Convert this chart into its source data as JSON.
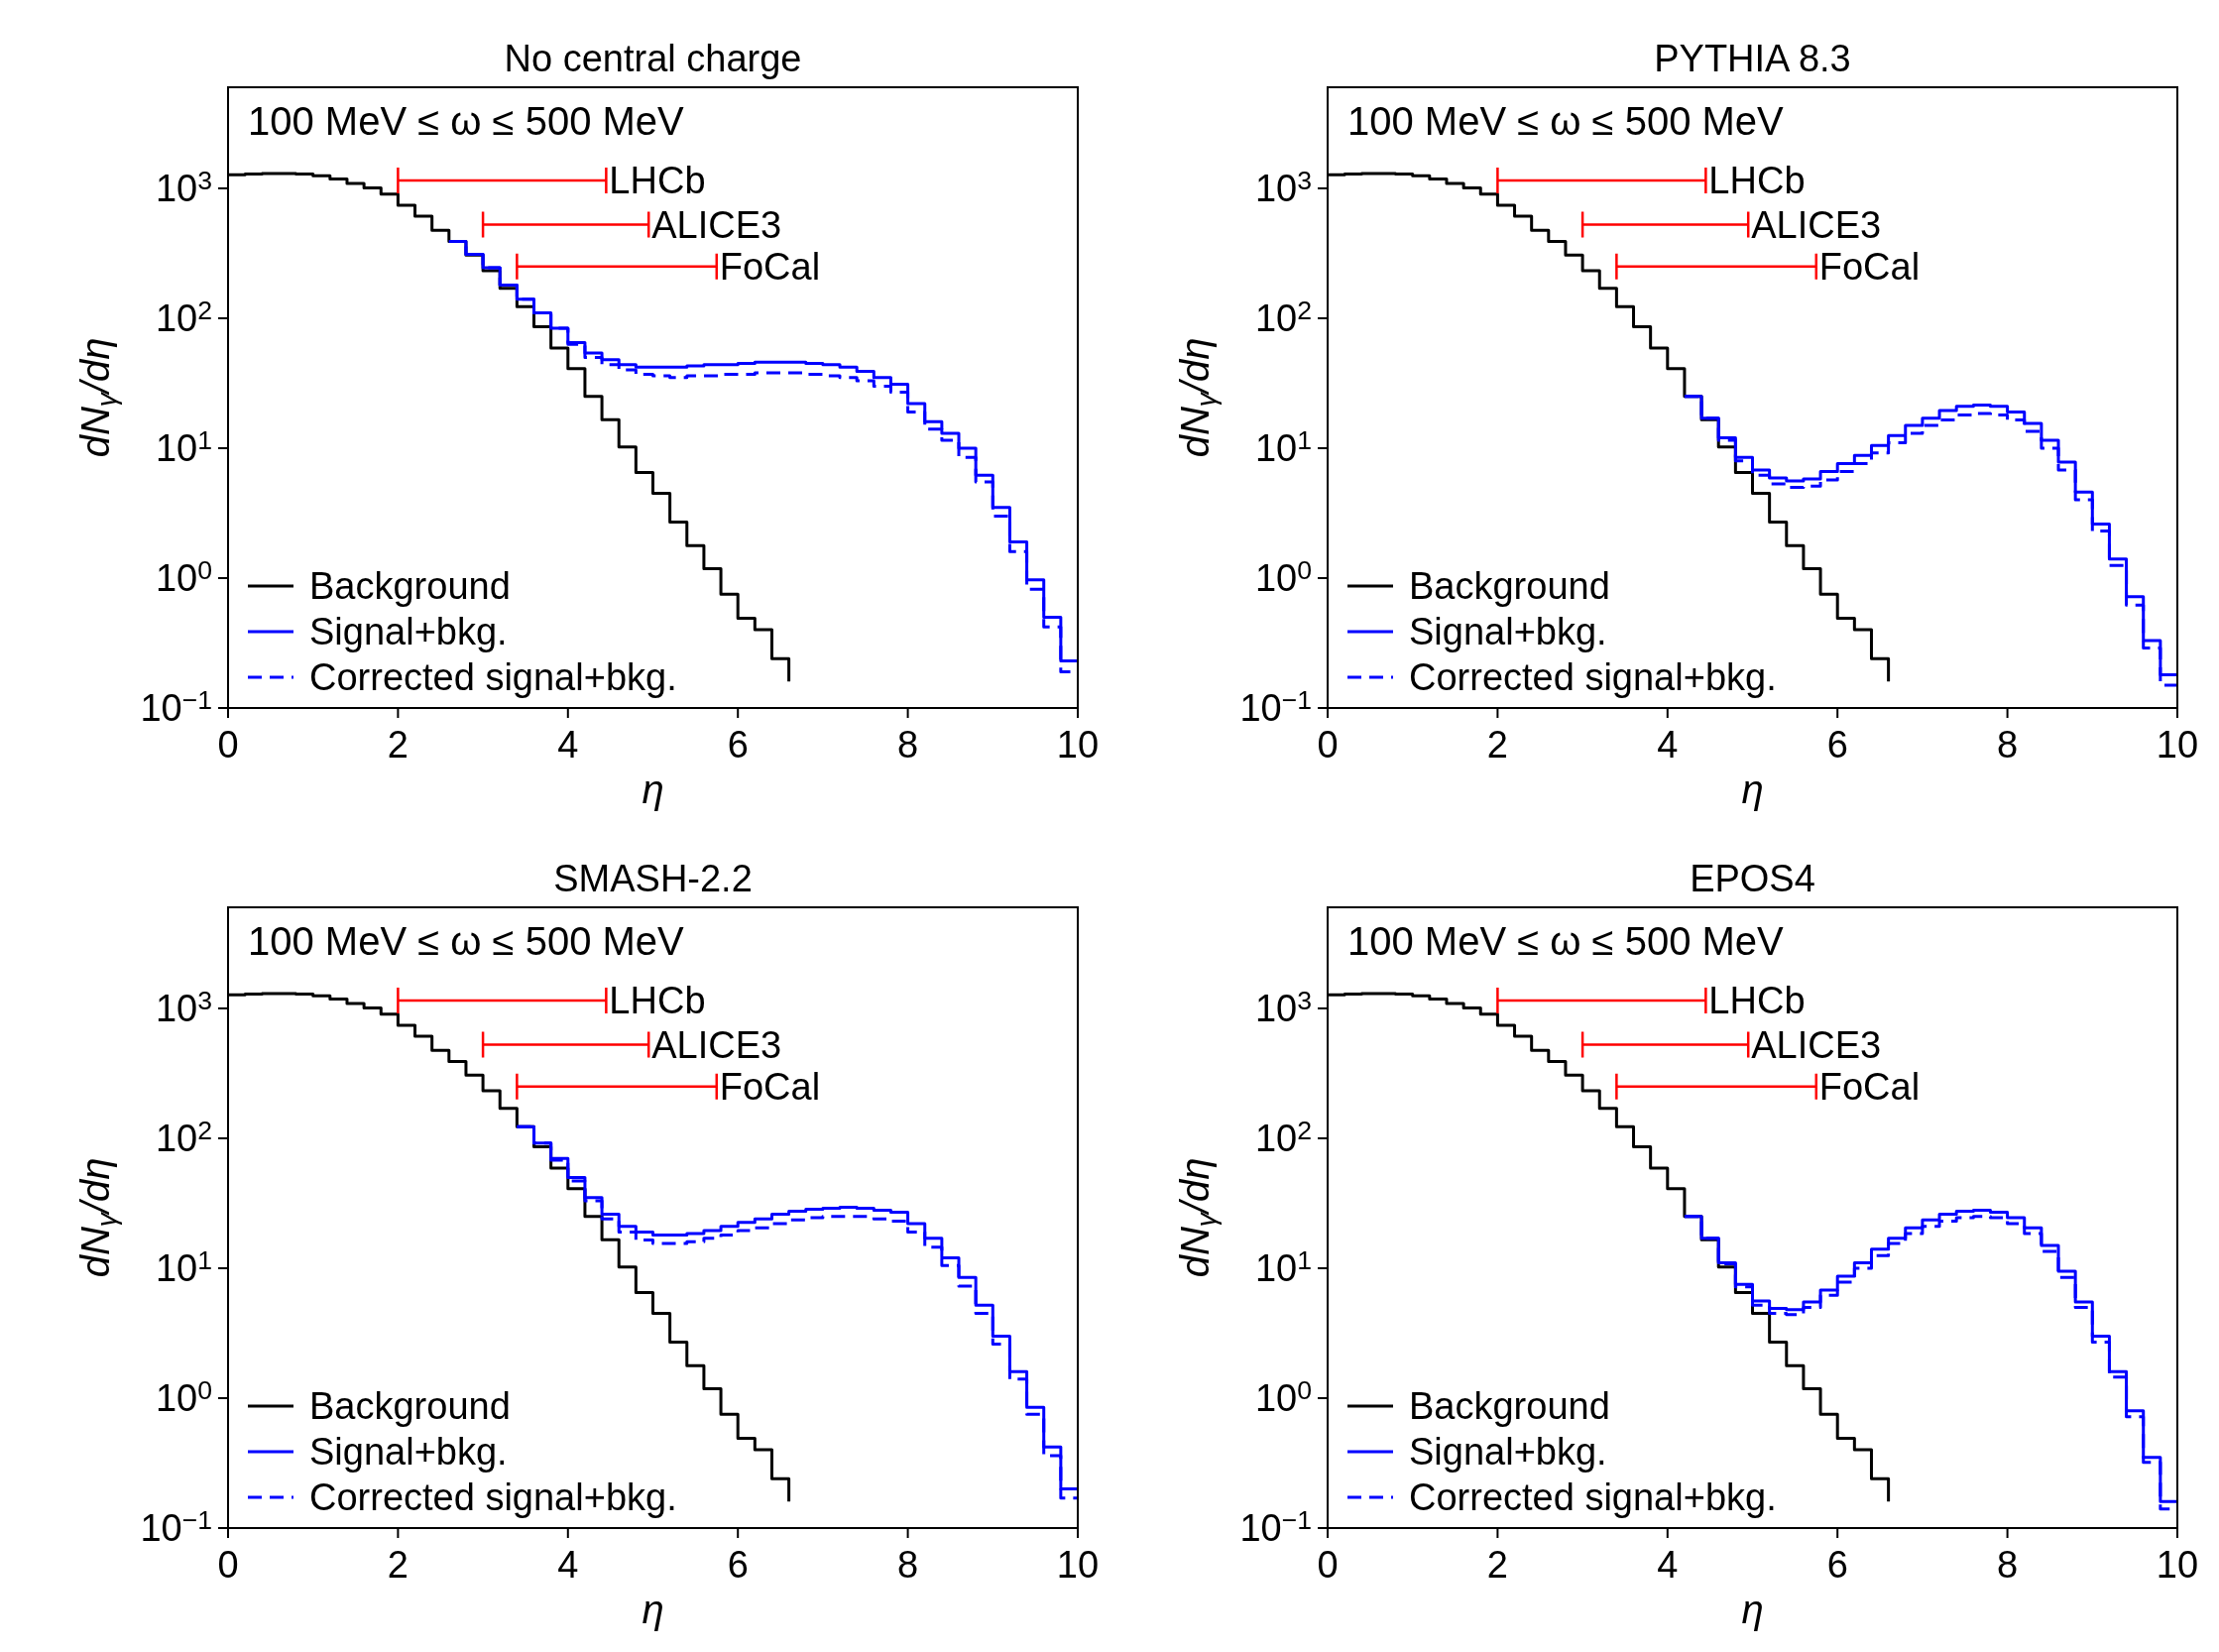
{
  "chart_data": [
    {
      "type": "step",
      "title": "No central charge",
      "xlabel": "η",
      "ylabel": "dN$_{γ}$/dη",
      "log": "y",
      "legend": "bottom left",
      "xlim": [
        0,
        10
      ],
      "ylim": [
        0.1,
        6000
      ],
      "xticks": [
        0,
        2,
        4,
        6,
        8,
        10
      ],
      "yticks": [
        {
          "value": 0.1,
          "label": "10$^{−1}$"
        },
        {
          "value": 1,
          "label": "10$^{0}$"
        },
        {
          "value": 10,
          "label": "10$^{1}$"
        },
        {
          "value": 100,
          "label": "10$^{2}$"
        },
        {
          "value": 1000,
          "label": "10$^{3}$"
        }
      ],
      "annotations": [
        "100 MeV ≤ ω ≤ 500 MeV"
      ],
      "x": [
        0,
        0.2,
        0.4,
        0.6,
        0.8,
        1,
        1.2,
        1.4,
        1.6,
        1.8,
        2,
        2.2,
        2.4,
        2.6,
        2.8,
        3,
        3.2,
        3.4,
        3.6,
        3.8,
        4,
        4.2,
        4.4,
        4.6,
        4.8,
        5,
        5.2,
        5.4,
        5.6,
        5.8,
        6,
        6.2,
        6.4,
        6.6,
        6.8,
        7,
        7.2,
        7.4,
        7.6,
        7.8,
        8,
        8.2,
        8.4,
        8.6,
        8.8,
        9,
        9.2,
        9.4,
        9.6,
        9.8,
        10
      ],
      "series": [
        {
          "name": "Background",
          "color": "#000000",
          "values": [
            1270,
            1290,
            1300,
            1300,
            1290,
            1250,
            1180,
            1090,
            1010,
            905,
            740,
            610,
            476,
            390,
            306,
            232,
            170,
            123,
            86,
            59,
            41,
            25,
            16.6,
            10.2,
            6.5,
            4.5,
            2.7,
            1.78,
            1.18,
            0.75,
            0.49,
            0.4,
            0.24,
            0.16,
            null,
            null,
            null,
            null,
            null,
            null,
            null,
            null,
            null,
            null,
            null,
            null,
            null,
            null,
            null,
            null,
            null
          ]
        },
        {
          "name": "Signal+bkg.",
          "color": "#0000ff",
          "values": [
            null,
            null,
            null,
            null,
            null,
            null,
            null,
            null,
            null,
            null,
            null,
            null,
            null,
            390,
            310,
            245,
            180,
            140,
            110,
            84,
            65,
            54,
            48,
            44,
            42,
            42,
            42,
            43,
            44,
            44,
            45,
            46,
            46,
            46,
            45,
            44,
            42,
            39,
            35,
            31,
            22,
            16,
            13,
            10,
            6.2,
            3.5,
            1.9,
            0.97,
            0.5,
            0.23,
            0.23
          ]
        },
        {
          "name": "Corrected signal+bkg.",
          "color": "#0000ff",
          "line_style": "dashed",
          "values": [
            null,
            null,
            null,
            null,
            null,
            null,
            null,
            null,
            null,
            null,
            null,
            null,
            null,
            390,
            310,
            245,
            180,
            140,
            110,
            84,
            63,
            50,
            44,
            40,
            37,
            36,
            35,
            36,
            36,
            37,
            37,
            38,
            38,
            38,
            37,
            36,
            35,
            33,
            30,
            27,
            19,
            14,
            11.5,
            8.5,
            5.5,
            3.0,
            1.6,
            0.82,
            0.42,
            0.19,
            0.19
          ]
        },
        {
          "name": "LHCb",
          "type": "line",
          "color": "#ff0000",
          "x": [
            2,
            4.45
          ],
          "values": [
            1150,
            1150
          ]
        },
        {
          "name": "ALICE3",
          "type": "line",
          "color": "#ff0000",
          "x": [
            3,
            4.95
          ],
          "values": [
            525,
            525
          ]
        },
        {
          "name": "FoCal",
          "type": "line",
          "color": "#ff0000",
          "x": [
            3.4,
            5.75
          ],
          "values": [
            250,
            250
          ]
        }
      ]
    },
    {
      "type": "step",
      "title": "PYTHIA 8.3",
      "xlabel": "η",
      "ylabel": "dN$_{γ}$/dη",
      "log": "y",
      "legend": "bottom left",
      "xlim": [
        0,
        10
      ],
      "ylim": [
        0.1,
        6000
      ],
      "xticks": [
        0,
        2,
        4,
        6,
        8,
        10
      ],
      "yticks": [
        {
          "value": 0.1,
          "label": "10$^{−1}$"
        },
        {
          "value": 1,
          "label": "10$^{0}$"
        },
        {
          "value": 10,
          "label": "10$^{1}$"
        },
        {
          "value": 100,
          "label": "10$^{2}$"
        },
        {
          "value": 1000,
          "label": "10$^{3}$"
        }
      ],
      "annotations": [
        "100 MeV ≤ ω ≤ 500 MeV"
      ],
      "x": [
        0,
        0.2,
        0.4,
        0.6,
        0.8,
        1,
        1.2,
        1.4,
        1.6,
        1.8,
        2,
        2.2,
        2.4,
        2.6,
        2.8,
        3,
        3.2,
        3.4,
        3.6,
        3.8,
        4,
        4.2,
        4.4,
        4.6,
        4.8,
        5,
        5.2,
        5.4,
        5.6,
        5.8,
        6,
        6.2,
        6.4,
        6.6,
        6.8,
        7,
        7.2,
        7.4,
        7.6,
        7.8,
        8,
        8.2,
        8.4,
        8.6,
        8.8,
        9,
        9.2,
        9.4,
        9.6,
        9.8,
        10
      ],
      "series": [
        {
          "name": "Background",
          "color": "#000000",
          "values": [
            1270,
            1290,
            1300,
            1300,
            1290,
            1250,
            1180,
            1090,
            1010,
            905,
            740,
            610,
            476,
            390,
            306,
            232,
            170,
            123,
            86,
            59,
            41,
            25,
            16.6,
            10.2,
            6.5,
            4.5,
            2.7,
            1.78,
            1.18,
            0.75,
            0.49,
            0.4,
            0.24,
            0.16,
            null,
            null,
            null,
            null,
            null,
            null,
            null,
            null,
            null,
            null,
            null,
            null,
            null,
            null,
            null,
            null,
            null
          ]
        },
        {
          "name": "Signal+bkg.",
          "color": "#0000ff",
          "values": [
            null,
            null,
            null,
            null,
            null,
            null,
            null,
            null,
            null,
            null,
            null,
            null,
            null,
            null,
            null,
            null,
            null,
            null,
            null,
            null,
            null,
            25,
            17,
            12,
            8.5,
            6.8,
            5.9,
            5.6,
            5.8,
            6.6,
            7.6,
            8.8,
            10.5,
            12.5,
            15,
            17,
            19.5,
            21,
            21.5,
            21,
            19,
            15.5,
            11.5,
            7.8,
            4.6,
            2.6,
            1.4,
            0.72,
            0.33,
            0.18,
            0.18
          ]
        },
        {
          "name": "Corrected signal+bkg.",
          "color": "#0000ff",
          "line_style": "dashed",
          "values": [
            null,
            null,
            null,
            null,
            null,
            null,
            null,
            null,
            null,
            null,
            null,
            null,
            null,
            null,
            null,
            null,
            null,
            null,
            null,
            null,
            null,
            25,
            17,
            11.5,
            8,
            6.2,
            5.3,
            5.0,
            5.1,
            5.7,
            6.6,
            7.6,
            9.2,
            11,
            13,
            15,
            16.5,
            18,
            18.5,
            18,
            16.5,
            13.5,
            10,
            6.8,
            4.0,
            2.3,
            1.25,
            0.62,
            0.29,
            0.15,
            0.15
          ]
        },
        {
          "name": "LHCb",
          "type": "line",
          "color": "#ff0000",
          "x": [
            2,
            4.45
          ],
          "values": [
            1150,
            1150
          ]
        },
        {
          "name": "ALICE3",
          "type": "line",
          "color": "#ff0000",
          "x": [
            3,
            4.95
          ],
          "values": [
            525,
            525
          ]
        },
        {
          "name": "FoCal",
          "type": "line",
          "color": "#ff0000",
          "x": [
            3.4,
            5.75
          ],
          "values": [
            250,
            250
          ]
        }
      ]
    },
    {
      "type": "step",
      "title": "SMASH-2.2",
      "xlabel": "η",
      "ylabel": "dN$_{γ}$/dη",
      "log": "y",
      "legend": "bottom left",
      "xlim": [
        0,
        10
      ],
      "ylim": [
        0.1,
        6000
      ],
      "xticks": [
        0,
        2,
        4,
        6,
        8,
        10
      ],
      "yticks": [
        {
          "value": 0.1,
          "label": "10$^{−1}$"
        },
        {
          "value": 1,
          "label": "10$^{0}$"
        },
        {
          "value": 10,
          "label": "10$^{1}$"
        },
        {
          "value": 100,
          "label": "10$^{2}$"
        },
        {
          "value": 1000,
          "label": "10$^{3}$"
        }
      ],
      "annotations": [
        "100 MeV ≤ ω ≤ 500 MeV"
      ],
      "x": [
        0,
        0.2,
        0.4,
        0.6,
        0.8,
        1,
        1.2,
        1.4,
        1.6,
        1.8,
        2,
        2.2,
        2.4,
        2.6,
        2.8,
        3,
        3.2,
        3.4,
        3.6,
        3.8,
        4,
        4.2,
        4.4,
        4.6,
        4.8,
        5,
        5.2,
        5.4,
        5.6,
        5.8,
        6,
        6.2,
        6.4,
        6.6,
        6.8,
        7,
        7.2,
        7.4,
        7.6,
        7.8,
        8,
        8.2,
        8.4,
        8.6,
        8.8,
        9,
        9.2,
        9.4,
        9.6,
        9.8,
        10
      ],
      "series": [
        {
          "name": "Background",
          "color": "#000000",
          "values": [
            1270,
            1290,
            1300,
            1300,
            1290,
            1250,
            1180,
            1090,
            1010,
            905,
            740,
            610,
            476,
            390,
            306,
            232,
            170,
            123,
            86,
            59,
            41,
            25,
            16.6,
            10.2,
            6.5,
            4.5,
            2.7,
            1.78,
            1.18,
            0.75,
            0.49,
            0.4,
            0.24,
            0.16,
            null,
            null,
            null,
            null,
            null,
            null,
            null,
            null,
            null,
            null,
            null,
            null,
            null,
            null,
            null,
            null,
            null
          ]
        },
        {
          "name": "Signal+bkg.",
          "color": "#0000ff",
          "values": [
            null,
            null,
            null,
            null,
            null,
            null,
            null,
            null,
            null,
            null,
            null,
            null,
            null,
            null,
            null,
            null,
            null,
            123,
            92,
            70,
            50,
            35,
            26,
            21,
            19,
            18,
            18,
            18.5,
            19.5,
            21,
            22.5,
            24,
            26,
            27.5,
            28.5,
            29,
            29.5,
            29,
            28,
            27,
            22,
            17,
            12,
            8.5,
            5.2,
            3.0,
            1.6,
            0.85,
            0.42,
            0.2,
            0.2
          ]
        },
        {
          "name": "Corrected signal+bkg.",
          "color": "#0000ff",
          "line_style": "dashed",
          "values": [
            null,
            null,
            null,
            null,
            null,
            null,
            null,
            null,
            null,
            null,
            null,
            null,
            null,
            null,
            null,
            null,
            null,
            123,
            92,
            68,
            47,
            33,
            24,
            19,
            16.5,
            15.5,
            15.5,
            16,
            17,
            18,
            19.5,
            20.5,
            22,
            23.5,
            24.5,
            25,
            25,
            25,
            24,
            23,
            19,
            14.5,
            10.5,
            7.3,
            4.5,
            2.6,
            1.4,
            0.75,
            0.36,
            0.17,
            0.17
          ]
        },
        {
          "name": "LHCb",
          "type": "line",
          "color": "#ff0000",
          "x": [
            2,
            4.45
          ],
          "values": [
            1150,
            1150
          ]
        },
        {
          "name": "ALICE3",
          "type": "line",
          "color": "#ff0000",
          "x": [
            3,
            4.95
          ],
          "values": [
            525,
            525
          ]
        },
        {
          "name": "FoCal",
          "type": "line",
          "color": "#ff0000",
          "x": [
            3.4,
            5.75
          ],
          "values": [
            250,
            250
          ]
        }
      ]
    },
    {
      "type": "step",
      "title": "EPOS4",
      "xlabel": "η",
      "ylabel": "dN$_{γ}$/dη",
      "log": "y",
      "legend": "bottom left",
      "xlim": [
        0,
        10
      ],
      "ylim": [
        0.1,
        6000
      ],
      "xticks": [
        0,
        2,
        4,
        6,
        8,
        10
      ],
      "yticks": [
        {
          "value": 0.1,
          "label": "10$^{−1}$"
        },
        {
          "value": 1,
          "label": "10$^{0}$"
        },
        {
          "value": 10,
          "label": "10$^{1}$"
        },
        {
          "value": 100,
          "label": "10$^{2}$"
        },
        {
          "value": 1000,
          "label": "10$^{3}$"
        }
      ],
      "annotations": [
        "100 MeV ≤ ω ≤ 500 MeV"
      ],
      "x": [
        0,
        0.2,
        0.4,
        0.6,
        0.8,
        1,
        1.2,
        1.4,
        1.6,
        1.8,
        2,
        2.2,
        2.4,
        2.6,
        2.8,
        3,
        3.2,
        3.4,
        3.6,
        3.8,
        4,
        4.2,
        4.4,
        4.6,
        4.8,
        5,
        5.2,
        5.4,
        5.6,
        5.8,
        6,
        6.2,
        6.4,
        6.6,
        6.8,
        7,
        7.2,
        7.4,
        7.6,
        7.8,
        8,
        8.2,
        8.4,
        8.6,
        8.8,
        9,
        9.2,
        9.4,
        9.6,
        9.8,
        10
      ],
      "series": [
        {
          "name": "Background",
          "color": "#000000",
          "values": [
            1270,
            1290,
            1300,
            1300,
            1290,
            1250,
            1180,
            1090,
            1010,
            905,
            740,
            610,
            476,
            390,
            306,
            232,
            170,
            123,
            86,
            59,
            41,
            25,
            16.6,
            10.2,
            6.5,
            4.5,
            2.7,
            1.78,
            1.18,
            0.75,
            0.49,
            0.4,
            0.24,
            0.16,
            null,
            null,
            null,
            null,
            null,
            null,
            null,
            null,
            null,
            null,
            null,
            null,
            null,
            null,
            null,
            null,
            null
          ]
        },
        {
          "name": "Signal+bkg.",
          "color": "#0000ff",
          "values": [
            null,
            null,
            null,
            null,
            null,
            null,
            null,
            null,
            null,
            null,
            null,
            null,
            null,
            null,
            null,
            null,
            null,
            null,
            null,
            null,
            null,
            25,
            17,
            11,
            7.5,
            5.6,
            4.9,
            4.8,
            5.5,
            6.8,
            8.7,
            11,
            14,
            17,
            20.5,
            23.5,
            26,
            27.5,
            28,
            27,
            24.5,
            20.5,
            15,
            9.5,
            5.5,
            3.0,
            1.6,
            0.8,
            0.35,
            0.16,
            0.16
          ]
        },
        {
          "name": "Corrected signal+bkg.",
          "color": "#0000ff",
          "line_style": "dashed",
          "values": [
            null,
            null,
            null,
            null,
            null,
            null,
            null,
            null,
            null,
            null,
            null,
            null,
            null,
            null,
            null,
            null,
            null,
            null,
            null,
            null,
            null,
            25,
            17,
            10.8,
            7.2,
            5.2,
            4.5,
            4.4,
            5.0,
            6.2,
            7.8,
            10,
            12.5,
            15.5,
            18.5,
            21,
            23,
            24.5,
            25,
            24.5,
            22,
            18.5,
            13.5,
            8.5,
            5.0,
            2.7,
            1.45,
            0.72,
            0.32,
            0.14,
            0.14
          ]
        },
        {
          "name": "LHCb",
          "type": "line",
          "color": "#ff0000",
          "x": [
            2,
            4.45
          ],
          "values": [
            1150,
            1150
          ]
        },
        {
          "name": "ALICE3",
          "type": "line",
          "color": "#ff0000",
          "x": [
            3,
            4.95
          ],
          "values": [
            525,
            525
          ]
        },
        {
          "name": "FoCal",
          "type": "line",
          "color": "#ff0000",
          "x": [
            3.4,
            5.75
          ],
          "values": [
            250,
            250
          ]
        }
      ]
    }
  ]
}
